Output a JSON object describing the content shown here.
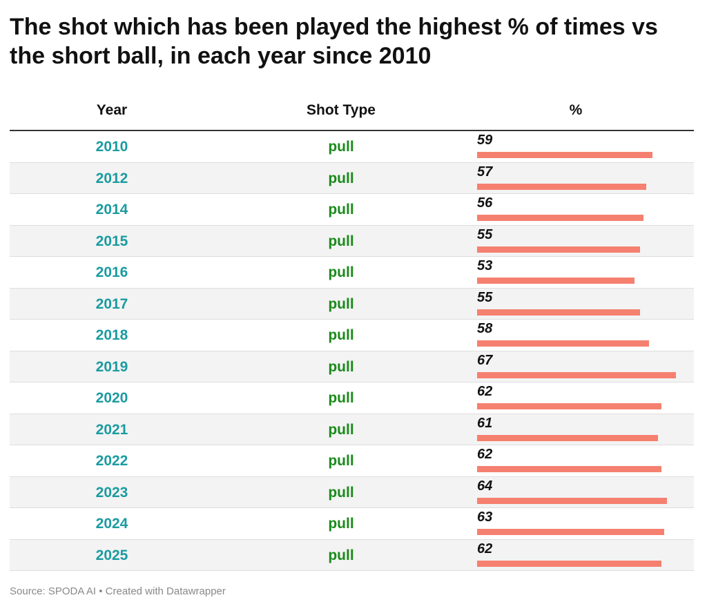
{
  "title": "The shot which has been played the highest % of times vs the short ball, in each year since 2010",
  "headers": {
    "year": "Year",
    "shot": "Shot Type",
    "pct": "%"
  },
  "colors": {
    "year": "#1a9ba0",
    "shot": "#1a8a1a",
    "bar": "#f5806f"
  },
  "source": "Source: SPODA AI • Created with Datawrapper",
  "chart_data": {
    "type": "table",
    "columns": [
      "Year",
      "Shot Type",
      "%"
    ],
    "rows": [
      {
        "year": "2010",
        "shot": "pull",
        "pct": 59
      },
      {
        "year": "2012",
        "shot": "pull",
        "pct": 57
      },
      {
        "year": "2014",
        "shot": "pull",
        "pct": 56
      },
      {
        "year": "2015",
        "shot": "pull",
        "pct": 55
      },
      {
        "year": "2016",
        "shot": "pull",
        "pct": 53
      },
      {
        "year": "2017",
        "shot": "pull",
        "pct": 55
      },
      {
        "year": "2018",
        "shot": "pull",
        "pct": 58
      },
      {
        "year": "2019",
        "shot": "pull",
        "pct": 67
      },
      {
        "year": "2020",
        "shot": "pull",
        "pct": 62
      },
      {
        "year": "2021",
        "shot": "pull",
        "pct": 61
      },
      {
        "year": "2022",
        "shot": "pull",
        "pct": 62
      },
      {
        "year": "2023",
        "shot": "pull",
        "pct": 64
      },
      {
        "year": "2024",
        "shot": "pull",
        "pct": 63
      },
      {
        "year": "2025",
        "shot": "pull",
        "pct": 62
      }
    ]
  }
}
